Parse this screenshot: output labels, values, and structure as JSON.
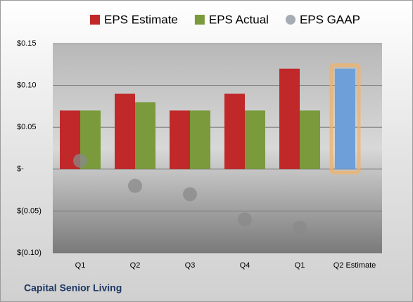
{
  "chart_data": {
    "type": "bar",
    "categories": [
      "Q1",
      "Q2",
      "Q3",
      "Q4",
      "Q1",
      "Q2 Estimate"
    ],
    "series": [
      {
        "name": "EPS Estimate",
        "color": "#c0282a",
        "values": [
          0.07,
          0.09,
          0.07,
          0.09,
          0.12,
          null
        ]
      },
      {
        "name": "EPS Actual",
        "color": "#7a9a3c",
        "values": [
          0.07,
          0.08,
          0.07,
          0.07,
          0.07,
          null
        ]
      },
      {
        "name": "EPS GAAP",
        "color": "#a6acb4",
        "type": "scatter",
        "values": [
          0.01,
          -0.02,
          -0.03,
          -0.06,
          -0.07,
          null
        ]
      },
      {
        "color": "#6f9fd8",
        "values": [
          null,
          null,
          null,
          null,
          null,
          0.12
        ]
      }
    ],
    "ylim": [
      -0.1,
      0.15
    ],
    "yticks": [
      {
        "value": -0.1,
        "label": "$(0.10)"
      },
      {
        "value": -0.05,
        "label": "$(0.05)"
      },
      {
        "value": 0,
        "label": "$-"
      },
      {
        "value": 0.05,
        "label": "$0.05"
      },
      {
        "value": 0.1,
        "label": "$0.10"
      },
      {
        "value": 0.15,
        "label": "$0.15"
      }
    ],
    "grid": true,
    "footer": "Capital Senior Living"
  }
}
